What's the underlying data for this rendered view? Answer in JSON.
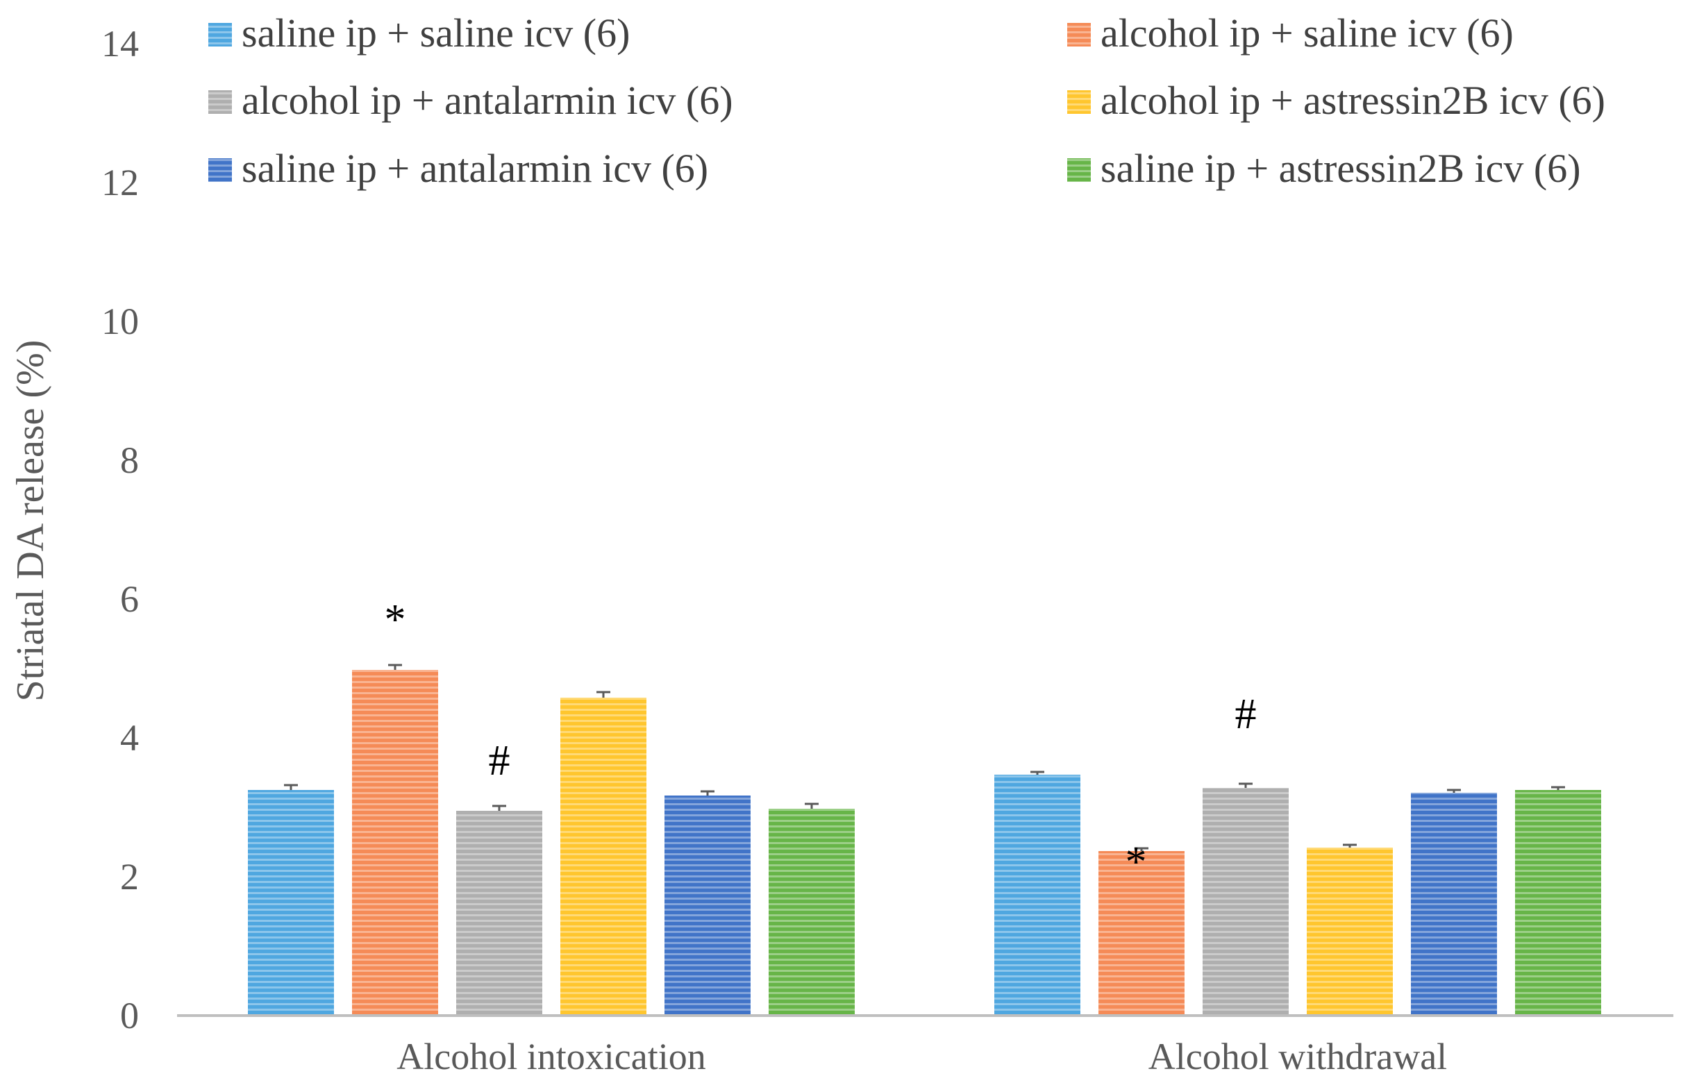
{
  "chart_data": {
    "type": "bar",
    "title": "",
    "xlabel": "",
    "ylabel": "Striatal DA release (%)",
    "ylim": [
      0,
      14
    ],
    "yticks": [
      0,
      2,
      4,
      6,
      8,
      10,
      12,
      14
    ],
    "grid": false,
    "legend_position": "top",
    "categories": [
      "Alcohol intoxication",
      "Alcohol withdrawal"
    ],
    "series": [
      {
        "name": "saline ip + saline icv (6)",
        "color": "#4FA7E0",
        "values": [
          3.25,
          3.47
        ],
        "errors": [
          0.07,
          0.04
        ]
      },
      {
        "name": "alcohol ip + saline icv (6)",
        "color": "#F58B57",
        "values": [
          4.98,
          2.37
        ],
        "errors": [
          0.07,
          0.04
        ]
      },
      {
        "name": "alcohol ip + antalarmin icv (6)",
        "color": "#AFAFAF",
        "values": [
          2.95,
          3.28
        ],
        "errors": [
          0.07,
          0.06
        ]
      },
      {
        "name": "alcohol ip + astressin2B icv (6)",
        "color": "#FFC62E",
        "values": [
          4.58,
          2.42
        ],
        "errors": [
          0.08,
          0.04
        ]
      },
      {
        "name": "saline ip + antalarmin icv (6)",
        "color": "#4174C8",
        "values": [
          3.17,
          3.21
        ],
        "errors": [
          0.06,
          0.04
        ]
      },
      {
        "name": "saline ip + astressin2B icv (6)",
        "color": "#67B548",
        "values": [
          2.98,
          3.25
        ],
        "errors": [
          0.07,
          0.04
        ]
      }
    ],
    "annotations": [
      {
        "text": "*",
        "category": 0,
        "series": 1
      },
      {
        "text": "#",
        "category": 0,
        "series": 2
      },
      {
        "text": "*",
        "category": 1,
        "series": 1
      },
      {
        "text": "#",
        "category": 1,
        "series": 2
      }
    ]
  }
}
